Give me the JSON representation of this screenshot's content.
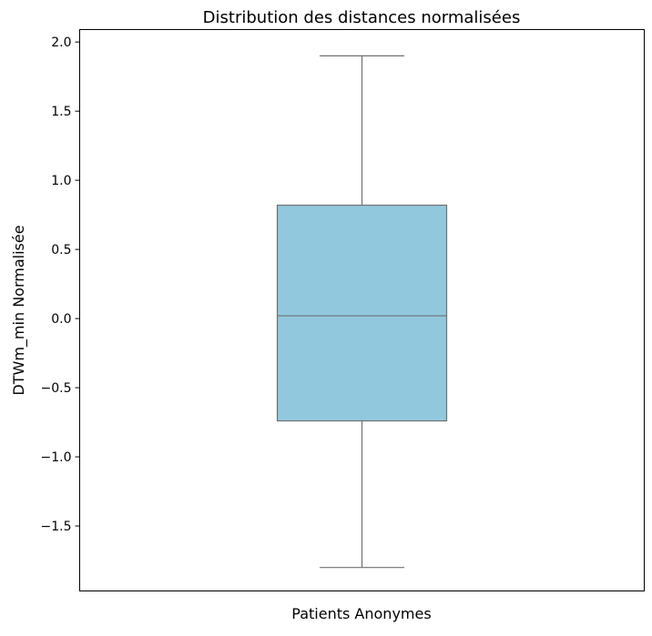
{
  "chart_data": {
    "type": "box",
    "title": "Distribution des distances normalisées",
    "xlabel": "Patients Anonymes",
    "ylabel": "DTWm_min Normalisée",
    "ylim": [
      -1.97,
      2.09
    ],
    "yticks": [
      2.0,
      1.5,
      1.0,
      0.5,
      0.0,
      -0.5,
      -1.0,
      -1.5
    ],
    "ytick_labels": [
      "2.0",
      "1.5",
      "1.0",
      "0.5",
      "0.0",
      "−0.5",
      "−1.0",
      "−1.5"
    ],
    "grid": false,
    "box": {
      "whisker_high": 1.9,
      "q3": 0.82,
      "median": 0.02,
      "q1": -0.74,
      "whisker_low": -1.8
    },
    "colors": {
      "box_fill": "#92c8de",
      "box_edge": "#707070",
      "axis": "#000000"
    }
  }
}
